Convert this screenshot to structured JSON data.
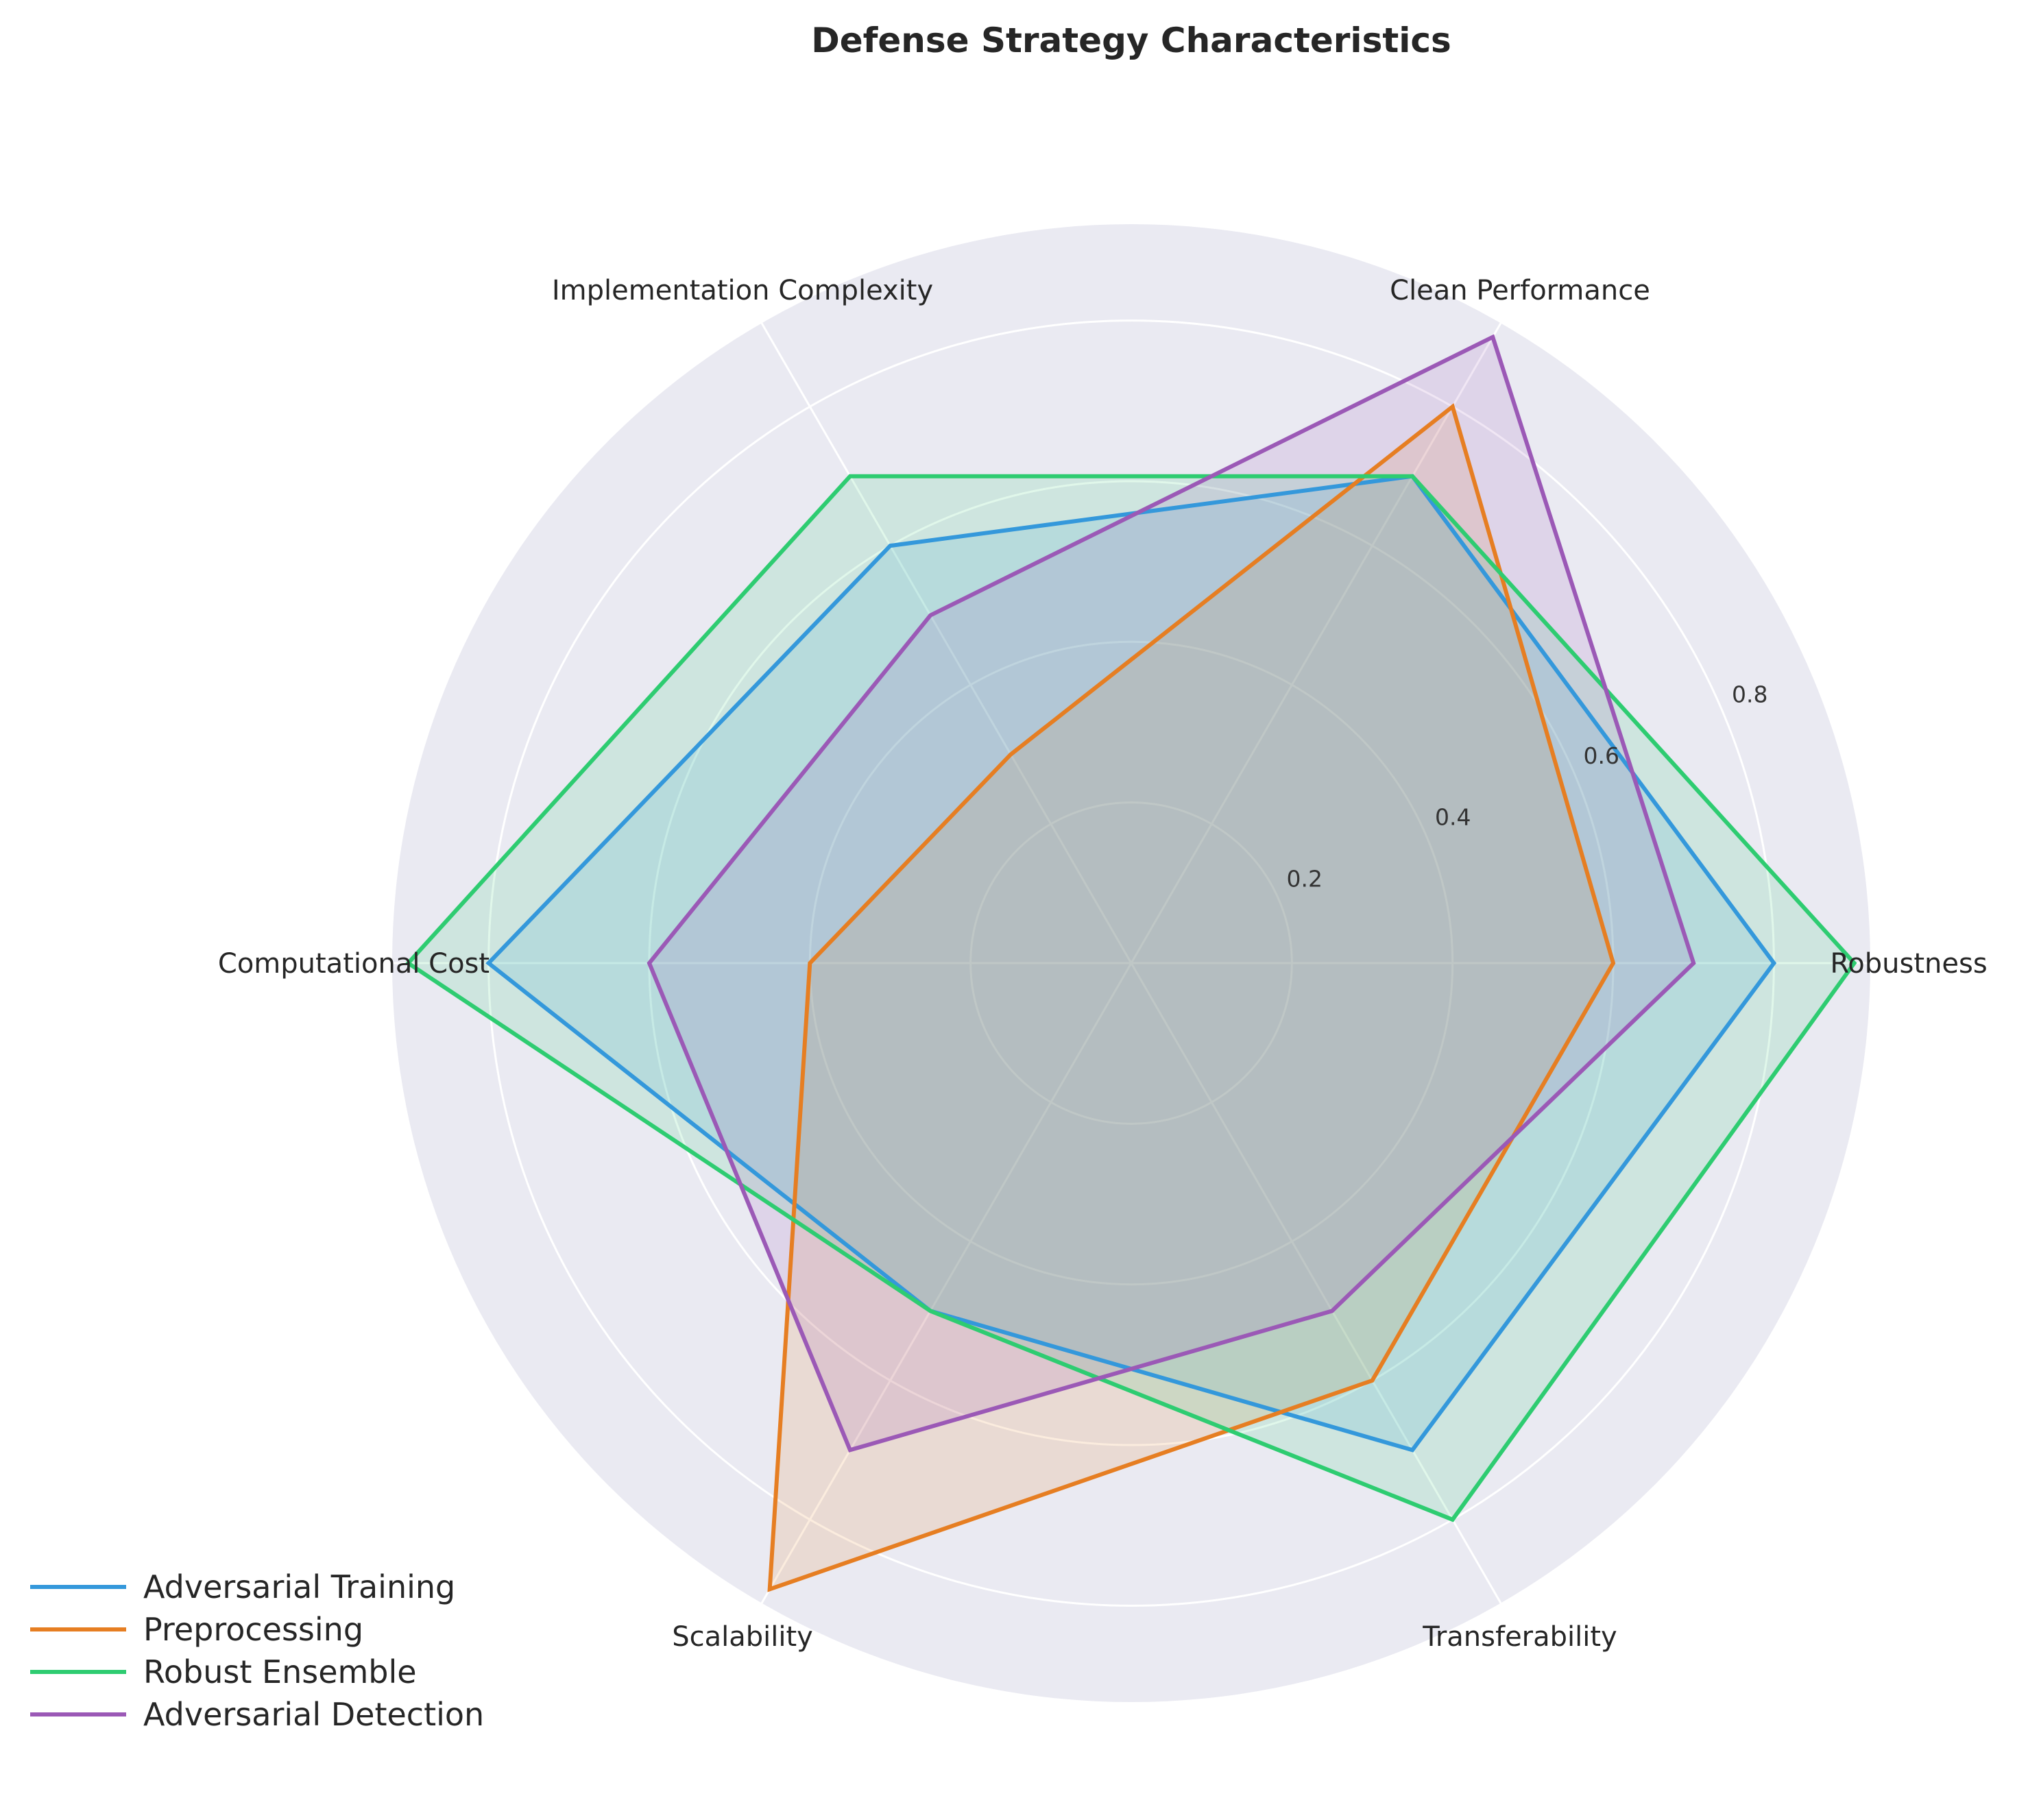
{
  "chart_data": {
    "type": "radar",
    "title": "Defense Strategy Characteristics",
    "categories": [
      "Robustness",
      "Clean Performance",
      "Implementation Complexity",
      "Computational Cost",
      "Scalability",
      "Transferability"
    ],
    "radial_ticks": [
      "0.2",
      "0.4",
      "0.6",
      "0.8"
    ],
    "radial_tick_values": [
      0.2,
      0.4,
      0.6,
      0.8
    ],
    "rlim": [
      0,
      0.92
    ],
    "grid": true,
    "legend_position": "lower-left",
    "series": [
      {
        "name": "Adversarial Training",
        "color": "#3498db",
        "values": [
          0.8,
          0.7,
          0.6,
          0.8,
          0.5,
          0.7
        ]
      },
      {
        "name": "Preprocessing",
        "color": "#e67e22",
        "values": [
          0.6,
          0.8,
          0.3,
          0.4,
          0.9,
          0.6
        ]
      },
      {
        "name": "Robust Ensemble",
        "color": "#2ecc71",
        "values": [
          0.9,
          0.7,
          0.7,
          0.9,
          0.5,
          0.8
        ]
      },
      {
        "name": "Adversarial Detection",
        "color": "#9b59b6",
        "values": [
          0.7,
          0.9,
          0.5,
          0.6,
          0.7,
          0.5
        ]
      }
    ]
  }
}
